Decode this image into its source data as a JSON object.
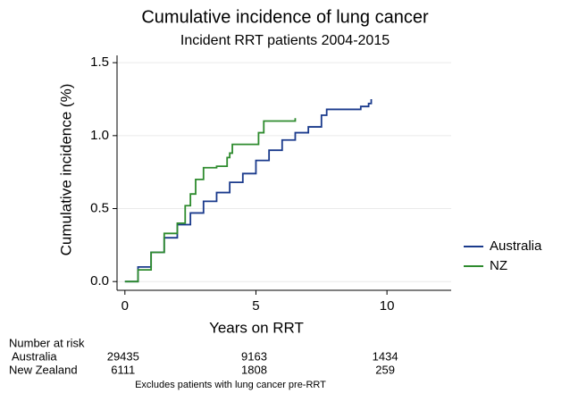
{
  "chart_data": {
    "type": "step",
    "title": "Cumulative incidence of lung cancer",
    "subtitle": "Incident RRT patients 2004-2015",
    "x_label": "Years on RRT",
    "y_label": "Cumulative incidence (%)",
    "xlim": [
      -0.3,
      12.45
    ],
    "ylim": [
      -0.06,
      1.55
    ],
    "xticks": [
      0,
      5,
      10
    ],
    "yticks": [
      {
        "value": 0,
        "label": "0.0"
      },
      0.5,
      {
        "value": 1,
        "label": "1.0"
      },
      1.5
    ],
    "grid": true,
    "legend": "right",
    "series": [
      {
        "name": "Australia",
        "color": "#1a3a8c",
        "x": [
          0,
          0.5,
          1,
          1.5,
          2,
          2.5,
          3,
          3.5,
          4,
          4.5,
          5,
          5.5,
          6,
          6.5,
          7,
          7.5,
          7.7,
          8.5,
          9,
          9.3,
          9.4
        ],
        "values": [
          0,
          0.1,
          0.2,
          0.3,
          0.39,
          0.47,
          0.55,
          0.61,
          0.68,
          0.74,
          0.83,
          0.9,
          0.97,
          1.02,
          1.06,
          1.14,
          1.18,
          1.18,
          1.2,
          1.22,
          1.25
        ]
      },
      {
        "name": "NZ",
        "color": "#2e8b2e",
        "x": [
          0,
          0.5,
          1,
          1.5,
          2,
          2.3,
          2.5,
          2.7,
          3,
          3.5,
          3.9,
          4,
          4.1,
          4.9,
          5.1,
          5.3,
          6,
          6.5
        ],
        "values": [
          0,
          0.08,
          0.2,
          0.33,
          0.4,
          0.52,
          0.6,
          0.7,
          0.78,
          0.79,
          0.85,
          0.88,
          0.94,
          0.94,
          1.02,
          1.1,
          1.1,
          1.12
        ]
      }
    ],
    "risk_table": {
      "title": "Number at risk",
      "rows": [
        {
          "name": "Australia",
          "values": [
            29435,
            9163,
            1434
          ]
        },
        {
          "name": "New Zealand",
          "values": [
            6111,
            1808,
            259
          ]
        }
      ]
    },
    "note": "Excludes patients with lung cancer pre-RRT"
  }
}
